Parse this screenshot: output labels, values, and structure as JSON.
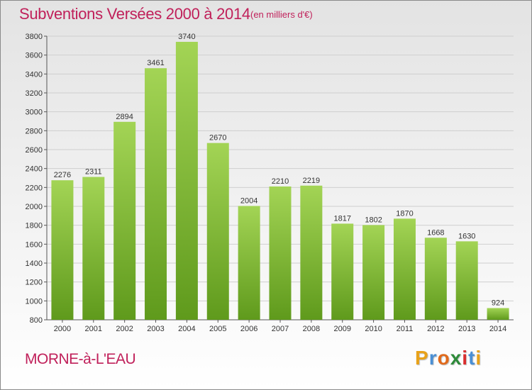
{
  "title": "Subventions Versées 2000 à 2014",
  "unit": "(en milliers d'€)",
  "commune": "MORNE-à-L'EAU",
  "logo": "Proxiti",
  "colors": {
    "title": "#c0205a",
    "bar_top": "#a3d455",
    "bar_bottom": "#5f9a1c",
    "logo_letters": [
      "#e8a21a",
      "#4a8fd4",
      "#e06a1c",
      "#2e8b3a",
      "#d92e2e",
      "#4a8fd4",
      "#e8a21a"
    ]
  },
  "chart_data": {
    "type": "bar",
    "title": "Subventions Versées 2000 à 2014",
    "subtitle": "(en milliers d'€)",
    "xlabel": "",
    "ylabel": "",
    "categories": [
      "2000",
      "2001",
      "2002",
      "2003",
      "2004",
      "2005",
      "2006",
      "2007",
      "2008",
      "2009",
      "2010",
      "2011",
      "2012",
      "2013",
      "2014"
    ],
    "values": [
      2276,
      2311,
      2894,
      3461,
      3740,
      2670,
      2004,
      2210,
      2219,
      1817,
      1802,
      1870,
      1668,
      1630,
      924
    ],
    "ylim": [
      800,
      3800
    ],
    "yticks": [
      800,
      1000,
      1200,
      1400,
      1600,
      1800,
      2000,
      2200,
      2400,
      2600,
      2800,
      3000,
      3200,
      3400,
      3600,
      3800
    ],
    "grid": true,
    "legend": "none"
  }
}
